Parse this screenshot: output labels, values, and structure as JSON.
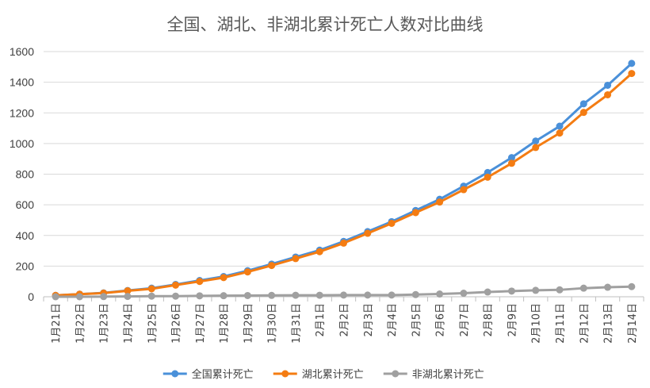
{
  "chart_data": {
    "type": "line",
    "title": "全国、湖北、非湖北累计死亡人数对比曲线",
    "xlabel": "",
    "ylabel": "",
    "ylim": [
      0,
      1600
    ],
    "yticks": [
      0,
      200,
      400,
      600,
      800,
      1000,
      1200,
      1400,
      1600
    ],
    "categories": [
      "1月21日",
      "1月22日",
      "1月23日",
      "1月24日",
      "1月25日",
      "1月26日",
      "1月27日",
      "1月28日",
      "1月29日",
      "1月30日",
      "1月31日",
      "2月1日",
      "2月2日",
      "2月3日",
      "2月4日",
      "2月5日",
      "2月6日",
      "2月7日",
      "2月8日",
      "2月9日",
      "2月10日",
      "2月11日",
      "2月12日",
      "2月13日",
      "2月14日"
    ],
    "grid": true,
    "legend_position": "bottom",
    "series": [
      {
        "name": "全国累计死亡",
        "color": "#4a90d9",
        "values": [
          9,
          17,
          25,
          41,
          56,
          80,
          106,
          132,
          170,
          213,
          259,
          304,
          361,
          425,
          490,
          563,
          636,
          722,
          811,
          908,
          1016,
          1113,
          1259,
          1380,
          1523
        ]
      },
      {
        "name": "湖北累计死亡",
        "color": "#f47c12",
        "values": [
          9,
          17,
          24,
          39,
          52,
          76,
          100,
          125,
          162,
          204,
          249,
          294,
          350,
          414,
          479,
          549,
          618,
          699,
          780,
          871,
          974,
          1068,
          1203,
          1318,
          1457
        ]
      },
      {
        "name": "非湖北累计死亡",
        "color": "#a0a0a0",
        "values": [
          0,
          0,
          1,
          2,
          4,
          4,
          6,
          7,
          8,
          9,
          10,
          10,
          11,
          11,
          11,
          14,
          18,
          23,
          31,
          37,
          42,
          45,
          56,
          62,
          66
        ]
      }
    ]
  }
}
